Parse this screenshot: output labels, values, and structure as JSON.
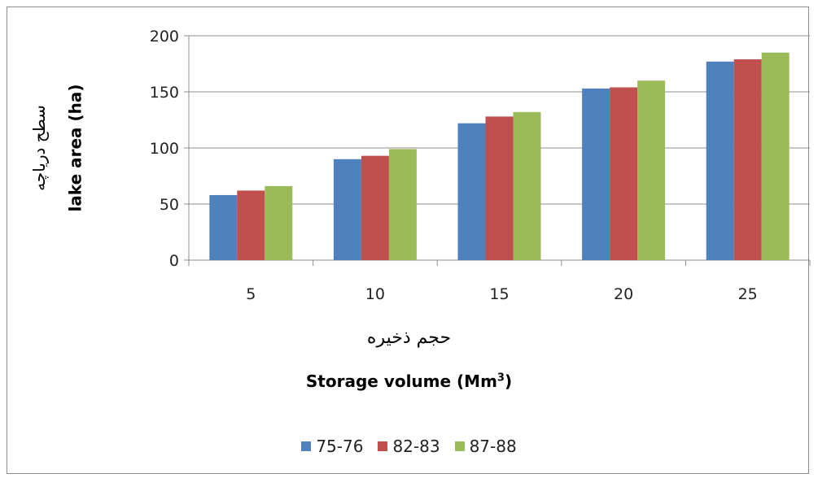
{
  "chart_data": {
    "type": "bar",
    "categories": [
      "5",
      "10",
      "15",
      "20",
      "25"
    ],
    "series": [
      {
        "name": "75-76",
        "values": [
          58,
          90,
          122,
          153,
          177
        ],
        "color": "#4f81bd"
      },
      {
        "name": "82-83",
        "values": [
          62,
          93,
          128,
          154,
          179
        ],
        "color": "#c0504d"
      },
      {
        "name": "87-88",
        "values": [
          66,
          99,
          132,
          160,
          185
        ],
        "color": "#9bbb59"
      }
    ],
    "ylim": [
      0,
      200
    ],
    "yticks": [
      "0",
      "50",
      "100",
      "150",
      "200"
    ],
    "ylabel_fa": "سطح دریاچه",
    "ylabel_en": "lake area (ha)",
    "xlabel_fa": "حجم ذخیره",
    "xlabel_en_main": "Storage volume (Mm",
    "xlabel_en_sup": "3",
    "xlabel_en_end": ")",
    "grid": "horizontal",
    "legend_position": "bottom"
  }
}
